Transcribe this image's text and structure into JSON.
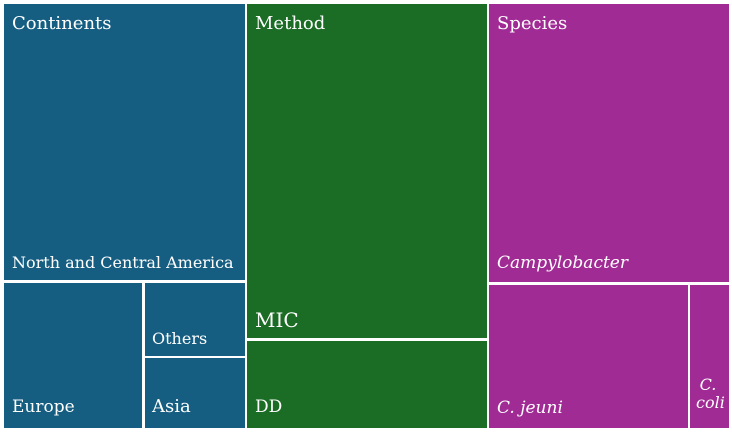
{
  "chart_data": {
    "type": "treemap",
    "groups": [
      {
        "header": "Continents",
        "color": "#155e82",
        "items": [
          {
            "label": "North and Central America",
            "value": 43.6
          },
          {
            "label": "Europe",
            "value": 10.7
          },
          {
            "label": "Others",
            "value": 4.4
          },
          {
            "label": "Asia",
            "value": 4.3
          }
        ]
      },
      {
        "header": "Method",
        "color": "#1b6c25",
        "items": [
          {
            "label": "MIC",
            "value": 50.3
          },
          {
            "label": "DD",
            "value": 12.7
          }
        ]
      },
      {
        "header": "Species",
        "color": "#a12b94",
        "items": [
          {
            "label": "Campylobacter",
            "value": 41.1,
            "italic": true
          },
          {
            "label": "C. jeuni",
            "value": 18.1,
            "italic": true
          },
          {
            "label": "C. coli",
            "value": 3.8,
            "italic": true
          }
        ]
      }
    ]
  }
}
